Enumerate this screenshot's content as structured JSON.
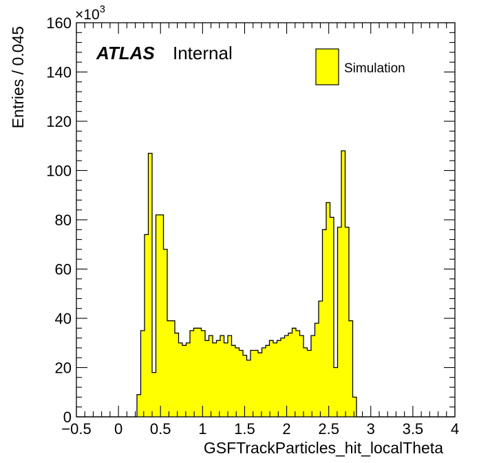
{
  "chart_data": {
    "type": "bar",
    "style": "step-histogram",
    "xlabel": "GSFTrackParticles_hit_localTheta",
    "ylabel": "Entries / 0.045",
    "xlim": [
      -0.5,
      4.0
    ],
    "ylim": [
      0,
      160
    ],
    "y_multiplier": "×10",
    "y_multiplier_exponent": "3",
    "bin_width": 0.045,
    "x_start": -0.5,
    "x_tick_values": [
      -0.5,
      0,
      0.5,
      1,
      1.5,
      2,
      2.5,
      3,
      3.5,
      4
    ],
    "x_tick_labels": [
      "−0.5",
      "0",
      "0.5",
      "1",
      "1.5",
      "2",
      "2.5",
      "3",
      "3.5",
      "4"
    ],
    "y_tick_values": [
      0,
      20,
      40,
      60,
      80,
      100,
      120,
      140,
      160
    ],
    "y_tick_labels": [
      "0",
      "20",
      "40",
      "60",
      "80",
      "100",
      "120",
      "140",
      "160"
    ],
    "series": [
      {
        "name": "Simulation",
        "color": "#ffff00",
        "edge_color": "#000000",
        "values": [
          0,
          0,
          0,
          0,
          0,
          0,
          0,
          0,
          0,
          0,
          0,
          0,
          0,
          0,
          0,
          0,
          9,
          35,
          74,
          107,
          18,
          82,
          82,
          68,
          39,
          39,
          34,
          30,
          29,
          30,
          35,
          36,
          36,
          35,
          31,
          33,
          30,
          31,
          33,
          30,
          33,
          29,
          28,
          27,
          25,
          23,
          27,
          27,
          26,
          28,
          29,
          31,
          30,
          31,
          32,
          33,
          34,
          36,
          35,
          33,
          28,
          27,
          33,
          38,
          47,
          76,
          87,
          81,
          20,
          77,
          108,
          77,
          39,
          8,
          0,
          0,
          0,
          0,
          0,
          0,
          0,
          0,
          0,
          0,
          0,
          0,
          0,
          0,
          0,
          0,
          0,
          0,
          0,
          0,
          0,
          0,
          0,
          0,
          0,
          0
        ]
      }
    ]
  },
  "labels": {
    "atlas": "ATLAS",
    "internal": "Internal",
    "legend_entry": "Simulation"
  }
}
